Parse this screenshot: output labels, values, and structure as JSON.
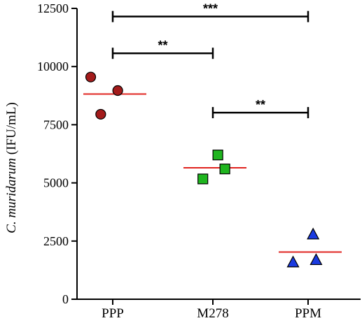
{
  "chart_data": {
    "type": "scatter",
    "title": "",
    "xlabel": "",
    "ylabel_italic": "C. muridarum",
    "ylabel_rest": " (IFU/mL)",
    "ylim": [
      0,
      12500
    ],
    "yticks": [
      0,
      2500,
      5000,
      7500,
      10000,
      12500
    ],
    "ytick_labels": [
      "0",
      "2500",
      "5000",
      "7500",
      "10000",
      "12500"
    ],
    "grid": false,
    "legend": "none",
    "categories": [
      "PPP",
      "M278",
      "PPM"
    ],
    "series": [
      {
        "category": "PPP",
        "marker": "circle",
        "color": "#a31b1b",
        "points": [
          {
            "offset": -0.22,
            "y": 9550
          },
          {
            "offset": 0.05,
            "y": 8970
          },
          {
            "offset": -0.12,
            "y": 7950
          }
        ],
        "mean": 8820
      },
      {
        "category": "M278",
        "marker": "square",
        "color": "#1fb51f",
        "points": [
          {
            "offset": 0.05,
            "y": 6200
          },
          {
            "offset": 0.12,
            "y": 5600
          },
          {
            "offset": -0.1,
            "y": 5170
          }
        ],
        "mean": 5650
      },
      {
        "category": "PPM",
        "marker": "triangle",
        "color": "#1a3ae0",
        "points": [
          {
            "offset": 0.05,
            "y": 2800
          },
          {
            "offset": -0.15,
            "y": 1600
          },
          {
            "offset": 0.08,
            "y": 1700
          }
        ],
        "mean": 2030
      }
    ],
    "mean_line_color": "#e0231f",
    "significance": [
      {
        "from": "PPP",
        "to": "PPM",
        "y": 12150,
        "label": "***"
      },
      {
        "from": "PPP",
        "to": "M278",
        "y": 10570,
        "label": "**"
      },
      {
        "from": "M278",
        "to": "PPM",
        "y": 8020,
        "label": "**"
      }
    ]
  }
}
